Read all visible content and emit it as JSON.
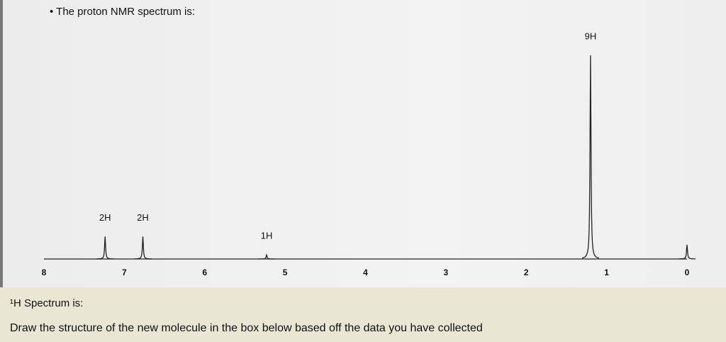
{
  "header": {
    "title": "The proton NMR spectrum is:"
  },
  "spectrum": {
    "xlim": [
      8,
      0
    ],
    "xticks": [
      8,
      7,
      6,
      5,
      4,
      3,
      2,
      1,
      0
    ],
    "peaks": [
      {
        "label": "2H",
        "shift": 7.24,
        "intensity": 11
      },
      {
        "label": "2H",
        "shift": 6.77,
        "intensity": 11
      },
      {
        "label": "1H",
        "shift": 5.23,
        "intensity": 2
      },
      {
        "label": "9H",
        "shift": 1.2,
        "intensity": 100
      },
      {
        "label": null,
        "shift": 0,
        "intensity": 7
      }
    ]
  },
  "footer": {
    "heading": "¹H Spectrum is:",
    "instruction": "Draw the structure of the new molecule in the box below based off the data you have collected"
  }
}
